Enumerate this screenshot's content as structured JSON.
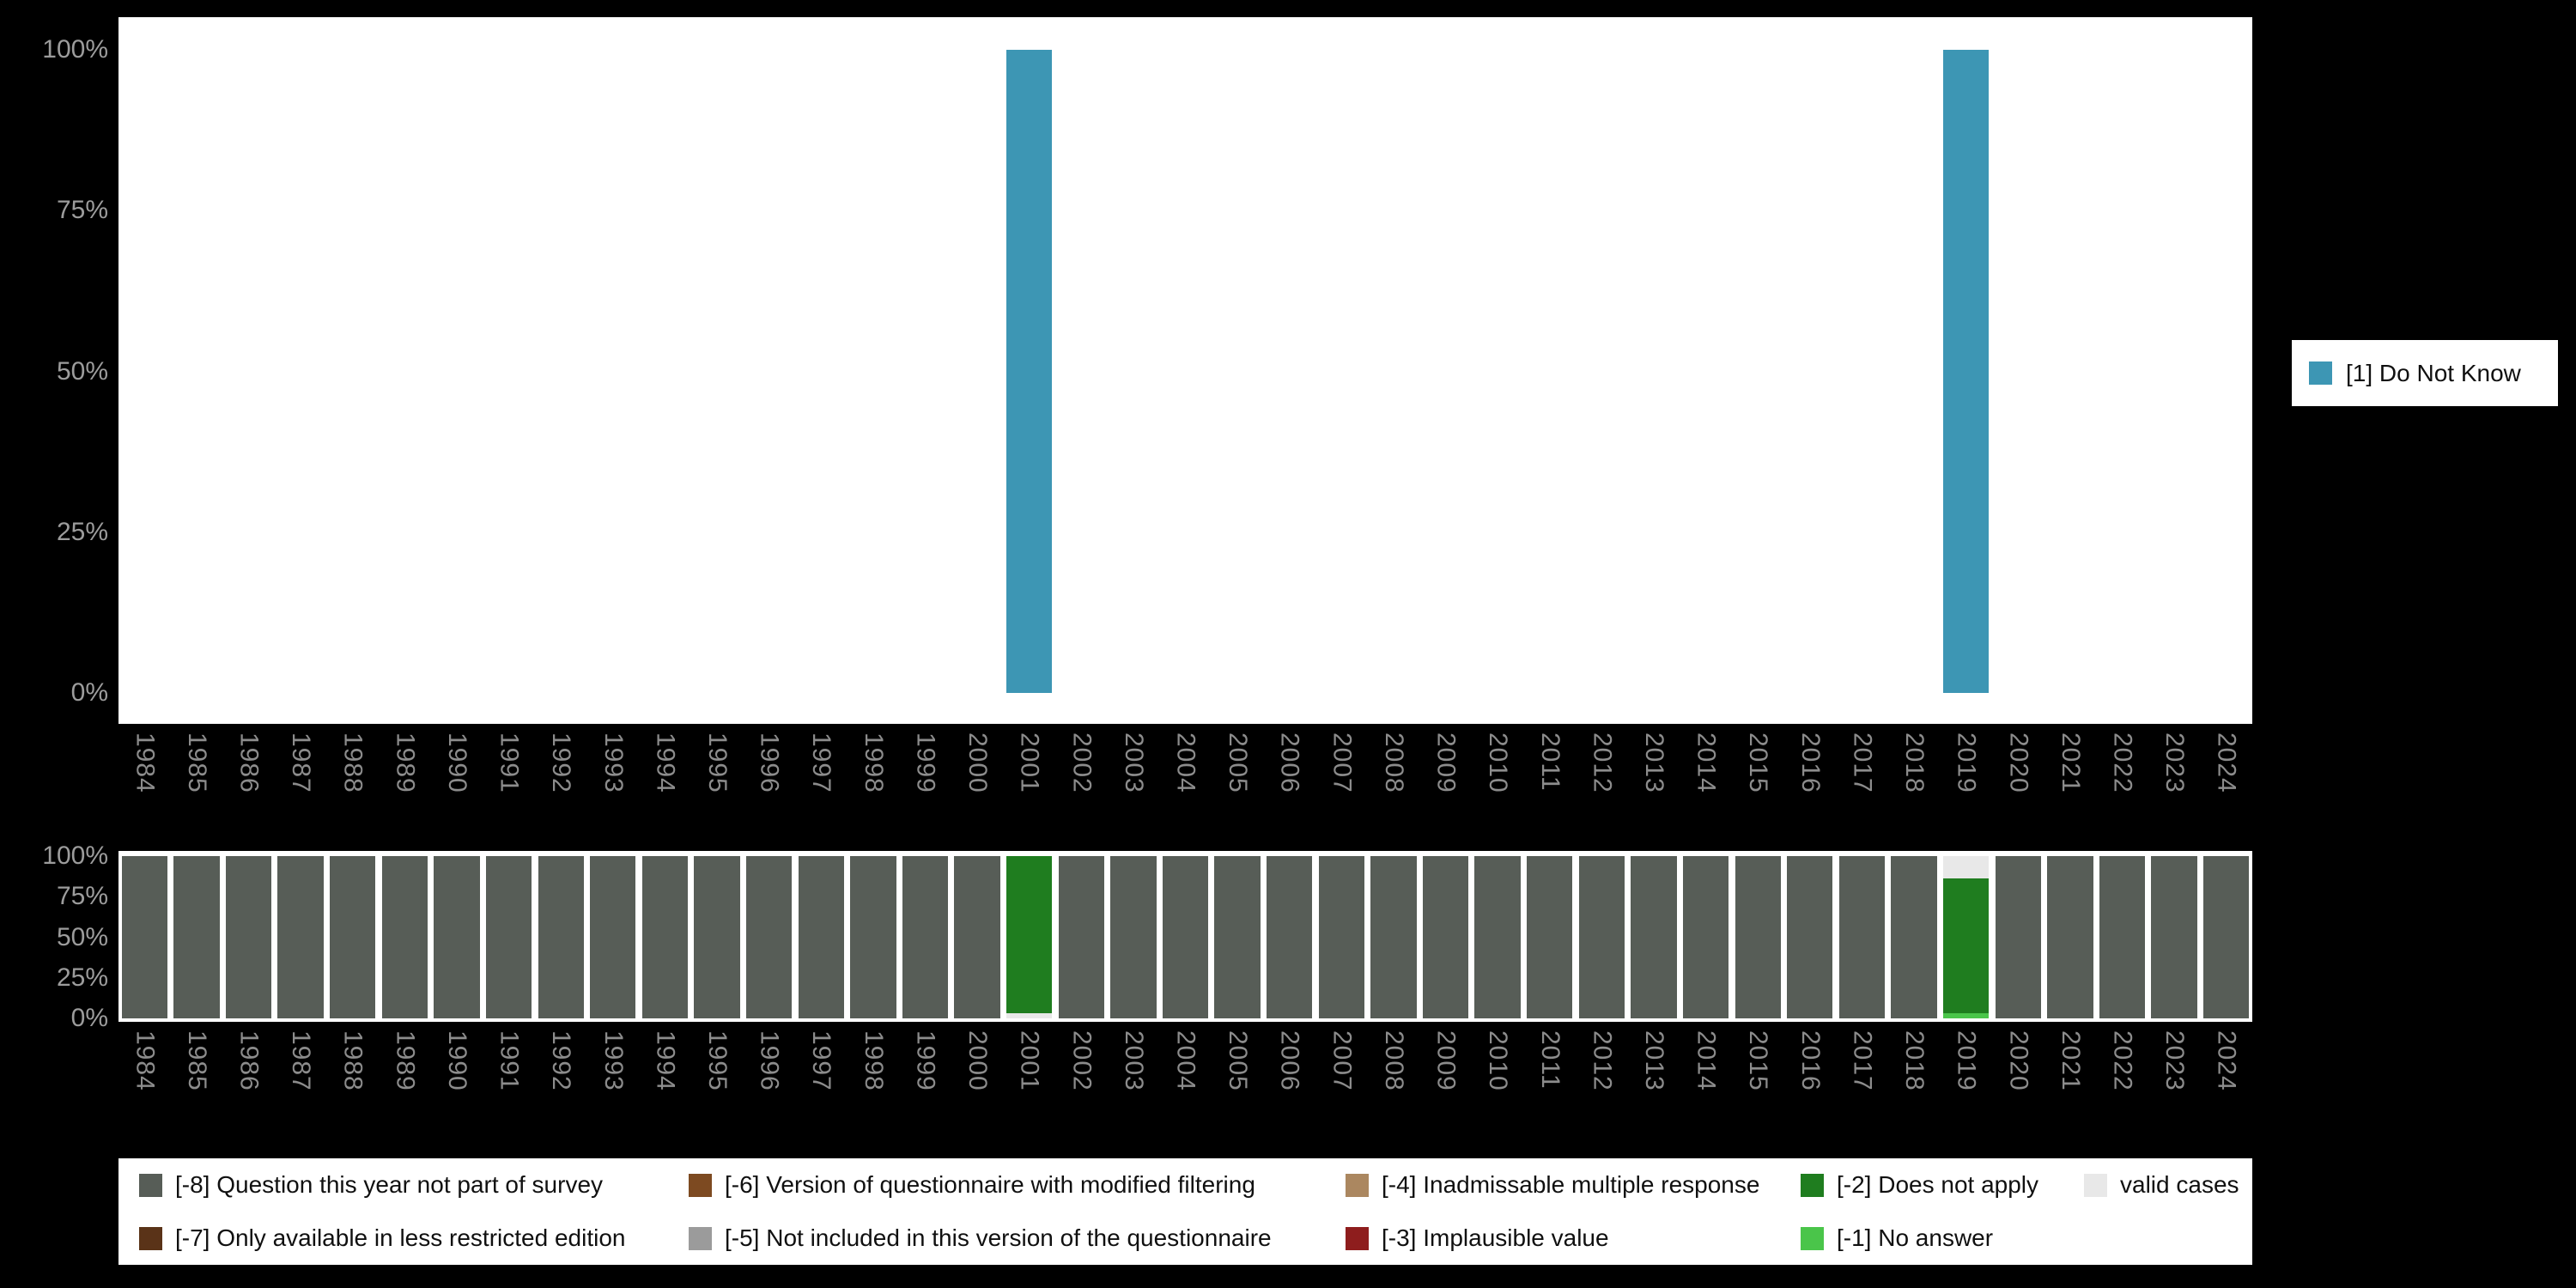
{
  "colors": {
    "background": "#000000",
    "plot_background": "#ffffff",
    "y_axis_text": "#9c9c9c",
    "x_axis_text": "#8c8c8c",
    "categories": {
      "do_not_know": "#3D96B4",
      "-8": "#575D57",
      "-7": "#5A3318",
      "-6": "#7D4A21",
      "-5": "#9B9B9B",
      "-4": "#AB8760",
      "-3": "#8E1D1D",
      "-2": "#1F7D1F",
      "-1": "#4AC54A",
      "valid": "#E8E8E8"
    }
  },
  "top_legend": {
    "items": [
      {
        "label": "[1] Do Not Know",
        "color_key": "do_not_know"
      }
    ]
  },
  "bottom_legend": {
    "rows": [
      [
        {
          "label": "[-8] Question this year not part of survey",
          "color_key": "-8"
        },
        {
          "label": "[-6] Version of questionnaire with modified filtering",
          "color_key": "-6"
        },
        {
          "label": "[-4] Inadmissable multiple response",
          "color_key": "-4"
        },
        {
          "label": "[-2] Does not apply",
          "color_key": "-2"
        },
        {
          "label": "valid cases",
          "color_key": "valid"
        }
      ],
      [
        {
          "label": "[-7] Only available in less restricted edition",
          "color_key": "-7"
        },
        {
          "label": "[-5] Not included in this version of the questionnaire",
          "color_key": "-5"
        },
        {
          "label": "[-3] Implausible value",
          "color_key": "-3"
        },
        {
          "label": "[-1] No answer",
          "color_key": "-1"
        }
      ]
    ]
  },
  "chart_data": [
    {
      "id": "valid-answers-distribution",
      "type": "bar",
      "title": "",
      "xlabel": "",
      "ylabel": "",
      "ylim": [
        0,
        100
      ],
      "y_ticks": [
        "100%",
        "75%",
        "50%",
        "25%",
        "0%"
      ],
      "x_tick_rotation_deg": 90,
      "legend_position": "right",
      "legend": [
        "[1] Do Not Know"
      ],
      "categories": [
        "1984",
        "1985",
        "1986",
        "1987",
        "1988",
        "1989",
        "1990",
        "1991",
        "1992",
        "1993",
        "1994",
        "1995",
        "1996",
        "1997",
        "1998",
        "1999",
        "2000",
        "2001",
        "2002",
        "2003",
        "2004",
        "2005",
        "2006",
        "2007",
        "2008",
        "2009",
        "2010",
        "2011",
        "2012",
        "2013",
        "2014",
        "2015",
        "2016",
        "2017",
        "2018",
        "2019",
        "2020",
        "2021",
        "2022",
        "2023",
        "2024"
      ],
      "series": [
        {
          "name": "[1] Do Not Know",
          "color_key": "do_not_know",
          "points": {
            "2001": 100,
            "2019": 100
          }
        }
      ]
    },
    {
      "id": "missing-values-distribution",
      "type": "stacked-bar",
      "title": "",
      "xlabel": "",
      "ylabel": "",
      "ylim": [
        0,
        100
      ],
      "y_ticks": [
        "100%",
        "75%",
        "50%",
        "25%",
        "0%"
      ],
      "x_tick_rotation_deg": 90,
      "legend_position": "bottom",
      "categories": [
        "1984",
        "1985",
        "1986",
        "1987",
        "1988",
        "1989",
        "1990",
        "1991",
        "1992",
        "1993",
        "1994",
        "1995",
        "1996",
        "1997",
        "1998",
        "1999",
        "2000",
        "2001",
        "2002",
        "2003",
        "2004",
        "2005",
        "2006",
        "2007",
        "2008",
        "2009",
        "2010",
        "2011",
        "2012",
        "2013",
        "2014",
        "2015",
        "2016",
        "2017",
        "2018",
        "2019",
        "2020",
        "2021",
        "2022",
        "2023",
        "2024"
      ],
      "default_stack": [
        {
          "color_key": "-8",
          "value": 100
        }
      ],
      "stacks": {
        "2001": [
          {
            "color_key": "valid",
            "value": 3
          },
          {
            "color_key": "-2",
            "value": 97
          }
        ],
        "2019": [
          {
            "color_key": "-1",
            "value": 3
          },
          {
            "color_key": "-2",
            "value": 83
          },
          {
            "color_key": "valid",
            "value": 14
          }
        ]
      }
    }
  ]
}
